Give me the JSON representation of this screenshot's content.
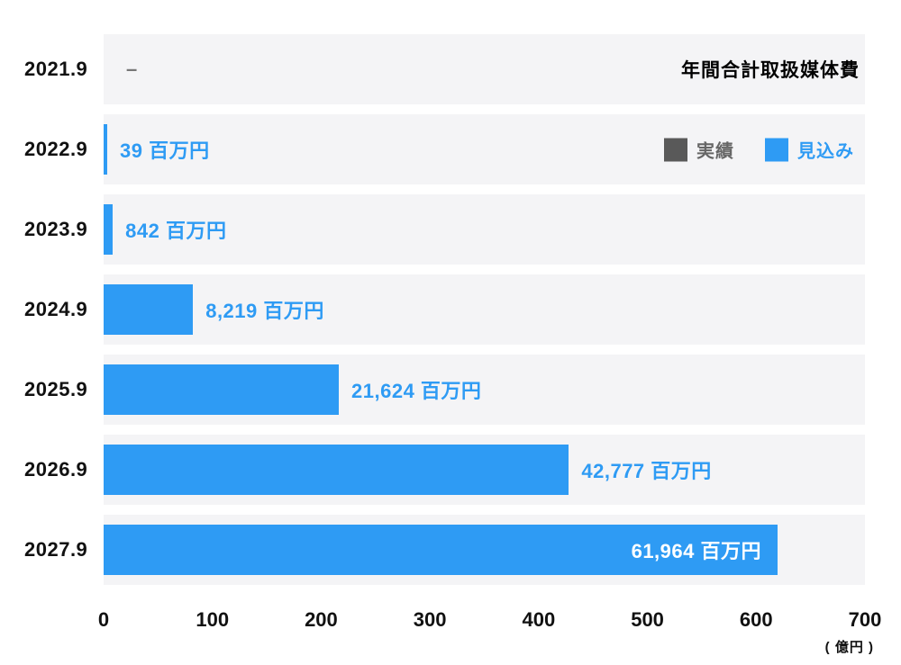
{
  "chart_data": {
    "type": "bar",
    "orientation": "horizontal",
    "title": "年間合計取扱媒体費",
    "categories": [
      "2021.9",
      "2022.9",
      "2023.9",
      "2024.9",
      "2025.9",
      "2026.9",
      "2027.9"
    ],
    "values": [
      null,
      39,
      842,
      8219,
      21624,
      42777,
      61964
    ],
    "value_labels": [
      "–",
      "39 百万円",
      "842 百万円",
      "8,219 百万円",
      "21,624 百万円",
      "42,777 百万円",
      "61,964 百万円"
    ],
    "label_inside": [
      false,
      false,
      false,
      false,
      false,
      false,
      true
    ],
    "unit": "百万円",
    "xlabel": "( 億円 )",
    "x_ticks": [
      0,
      100,
      200,
      300,
      400,
      500,
      600,
      700
    ],
    "xlim": [
      0,
      700
    ],
    "legend": [
      {
        "label": "実績",
        "color": "#595959",
        "text_color": "#666666"
      },
      {
        "label": "見込み",
        "color": "#2E9BF4",
        "text_color": "#2E9BF4"
      }
    ],
    "colors": {
      "bar": "#2E9BF4",
      "row_bg": "#f4f4f6",
      "value_text": "#2E9BF4",
      "value_text_inside": "#ffffff",
      "no_data_dash": "#777777"
    },
    "grid": false,
    "legend_position": "top-right"
  }
}
